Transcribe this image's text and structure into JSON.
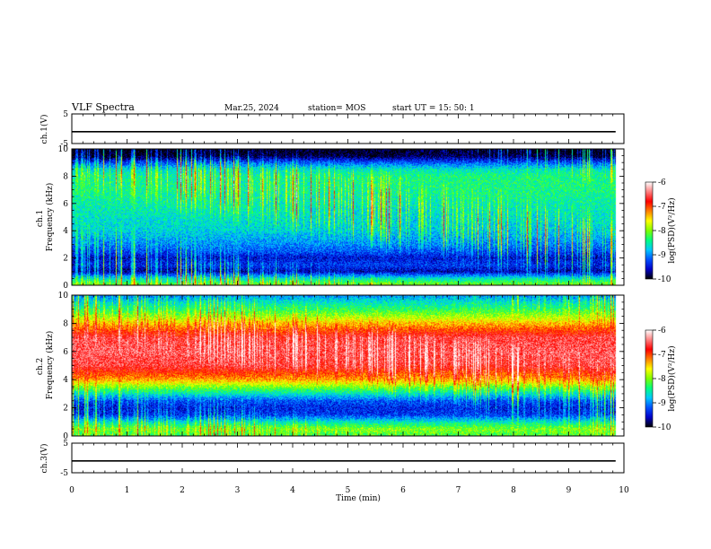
{
  "header": {
    "title": "VLF Spectra",
    "date": "Mar.25, 2024",
    "station": "station= MOS",
    "start": "start  UT =   15: 50: 1"
  },
  "colors": {
    "spectrum_scale": [
      "#000000",
      "#0000c8",
      "#0050ff",
      "#00c8ff",
      "#00ff80",
      "#80ff00",
      "#ffff00",
      "#ff8000",
      "#ff0000",
      "#ff8080",
      "#ffffff"
    ]
  },
  "chart_data": [
    {
      "type": "line",
      "panel": "ch1-waveform",
      "ylabel": "ch.1(V)",
      "ylim": [
        -5,
        5
      ],
      "yticks": [
        "5",
        "-5"
      ],
      "series": [
        {
          "values": [
            -1,
            -1,
            -1,
            -1,
            -1,
            -1,
            -1,
            -1,
            -1,
            -1,
            -1
          ]
        }
      ],
      "x": [
        0,
        1,
        2,
        3,
        4,
        5,
        6,
        7,
        8,
        9,
        9.85
      ]
    },
    {
      "type": "heatmap",
      "panel": "ch1-spectrogram",
      "ylabel": "ch.1\nFrequency (kHz)",
      "ylim": [
        0,
        10
      ],
      "yticks": [
        "0",
        "2",
        "4",
        "6",
        "8",
        "10"
      ],
      "x_range_min": [
        0,
        9.85
      ],
      "frequency_profile_kHz": [
        0,
        0.5,
        1,
        1.5,
        2,
        2.5,
        3,
        4,
        5,
        6,
        7,
        8,
        8.5,
        9,
        9.5,
        10
      ],
      "log_psd_profile": [
        -8.0,
        -8.6,
        -9.6,
        -9.3,
        -9.5,
        -9.2,
        -9.0,
        -8.7,
        -8.6,
        -8.5,
        -8.4,
        -8.4,
        -8.6,
        -9.2,
        -9.9,
        -10
      ],
      "colorbar": {
        "label": "log(PSD)(V²/Hz)",
        "range": [
          -10,
          -6
        ],
        "ticks": [
          "-6",
          "-7",
          "-8",
          "-9",
          "-10"
        ]
      }
    },
    {
      "type": "heatmap",
      "panel": "ch2-spectrogram",
      "ylabel": "ch.2\nFrequency (kHz)",
      "ylim": [
        0,
        10
      ],
      "yticks": [
        "0",
        "2",
        "4",
        "6",
        "8",
        "10"
      ],
      "x_range_min": [
        0,
        9.85
      ],
      "frequency_profile_kHz": [
        0,
        0.5,
        1,
        1.5,
        2,
        2.5,
        3,
        3.5,
        4,
        5,
        6,
        7,
        7.5,
        8,
        8.5,
        9,
        9.5,
        10
      ],
      "log_psd_profile": [
        -8.2,
        -8.0,
        -8.6,
        -9.3,
        -9.4,
        -9.2,
        -8.6,
        -8.0,
        -7.3,
        -6.6,
        -6.5,
        -6.6,
        -7.0,
        -7.4,
        -7.9,
        -8.3,
        -8.6,
        -9.0
      ],
      "colorbar": {
        "label": "log(PSD)(V²/Hz)",
        "range": [
          -10,
          -6
        ],
        "ticks": [
          "-6",
          "-7",
          "-8",
          "-9",
          "-10"
        ]
      }
    },
    {
      "type": "line",
      "panel": "ch3-waveform",
      "ylabel": "ch.3(V)",
      "ylim": [
        -5,
        5
      ],
      "yticks": [
        "5",
        "-5"
      ],
      "series": [
        {
          "values": [
            -1,
            -1,
            -1,
            -1,
            -1,
            -1,
            -1,
            -1,
            -1,
            -1,
            -1
          ]
        }
      ],
      "x": [
        0,
        1,
        2,
        3,
        4,
        5,
        6,
        7,
        8,
        9,
        9.85
      ]
    }
  ],
  "xaxis": {
    "label": "Time (min)",
    "range": [
      0,
      10
    ],
    "ticks": [
      "0",
      "1",
      "2",
      "3",
      "4",
      "5",
      "6",
      "7",
      "8",
      "9",
      "10"
    ]
  }
}
